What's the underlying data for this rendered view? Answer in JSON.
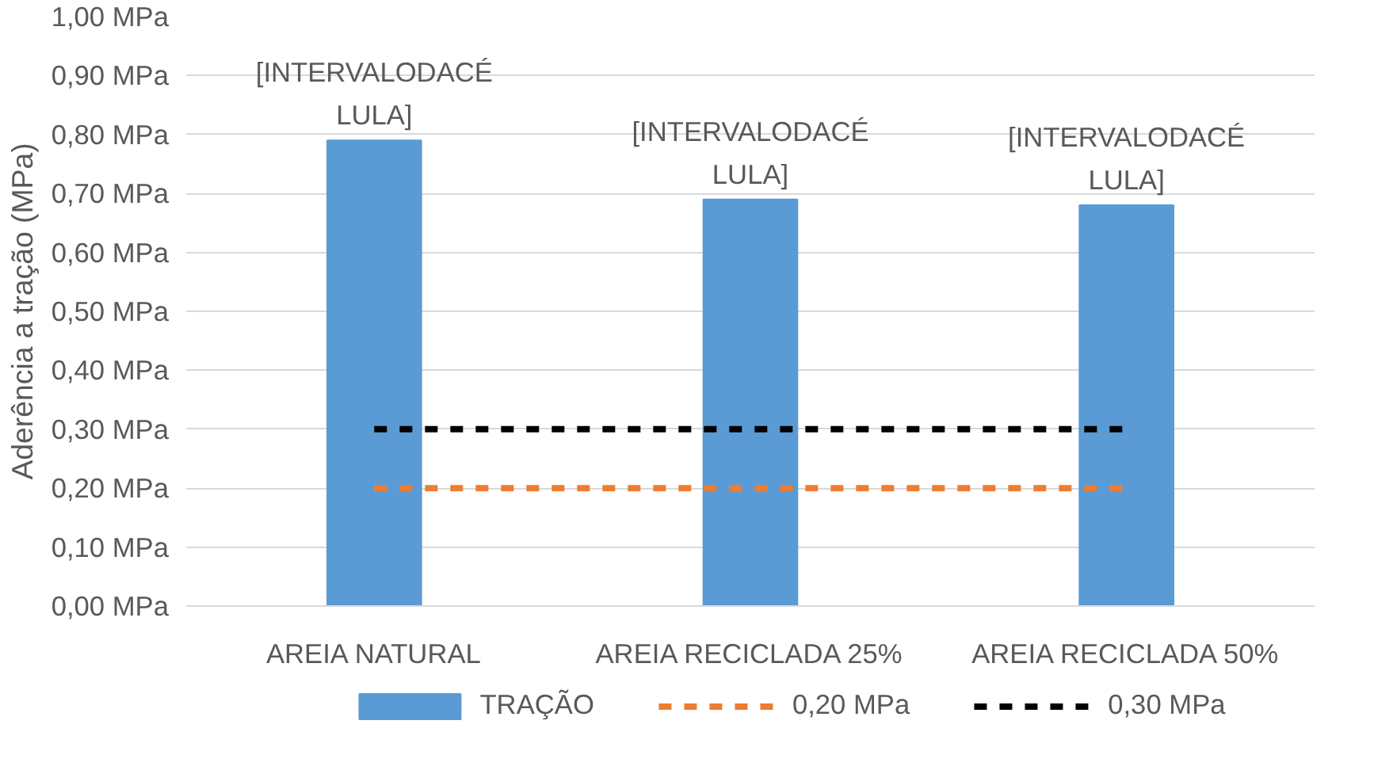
{
  "chart_data": {
    "type": "bar",
    "ylabel": "Aderência a tração (MPa)",
    "categories": [
      "AREIA NATURAL",
      "AREIA RECICLADA 25%",
      "AREIA RECICLADA 50%"
    ],
    "series": [
      {
        "name": "TRAÇÃO",
        "color": "#5b9bd5",
        "values": [
          0.79,
          0.69,
          0.68
        ],
        "value_labels": [
          "[INTERVALODACÉ LULA]",
          "[INTERVALODACÉ LULA]",
          "[INTERVALODACÉ LULA]"
        ]
      },
      {
        "name": "0,20 MPa",
        "type": "line",
        "color": "#ed7d31",
        "line_style": "dashed",
        "values": [
          0.2,
          0.2,
          0.2
        ]
      },
      {
        "name": "0,30 MPa",
        "type": "line",
        "color": "#000000",
        "line_style": "dashed",
        "values": [
          0.3,
          0.3,
          0.3
        ]
      }
    ],
    "ylim": [
      0,
      1
    ],
    "yticks": [
      {
        "value": 0,
        "label": "0,00 MPa"
      },
      {
        "value": 0.1,
        "label": "0,10 MPa"
      },
      {
        "value": 0.2,
        "label": "0,20 MPa"
      },
      {
        "value": 0.3,
        "label": "0,30 MPa"
      },
      {
        "value": 0.4,
        "label": "0,40 MPa"
      },
      {
        "value": 0.5,
        "label": "0,50 MPa"
      },
      {
        "value": 0.6,
        "label": "0,60 MPa"
      },
      {
        "value": 0.7,
        "label": "0,70 MPa"
      },
      {
        "value": 0.8,
        "label": "0,80 MPa"
      },
      {
        "value": 0.9,
        "label": "0,90 MPa"
      },
      {
        "value": 1,
        "label": "1,00 MPa"
      }
    ],
    "grid": "y",
    "legend": "bottom"
  }
}
